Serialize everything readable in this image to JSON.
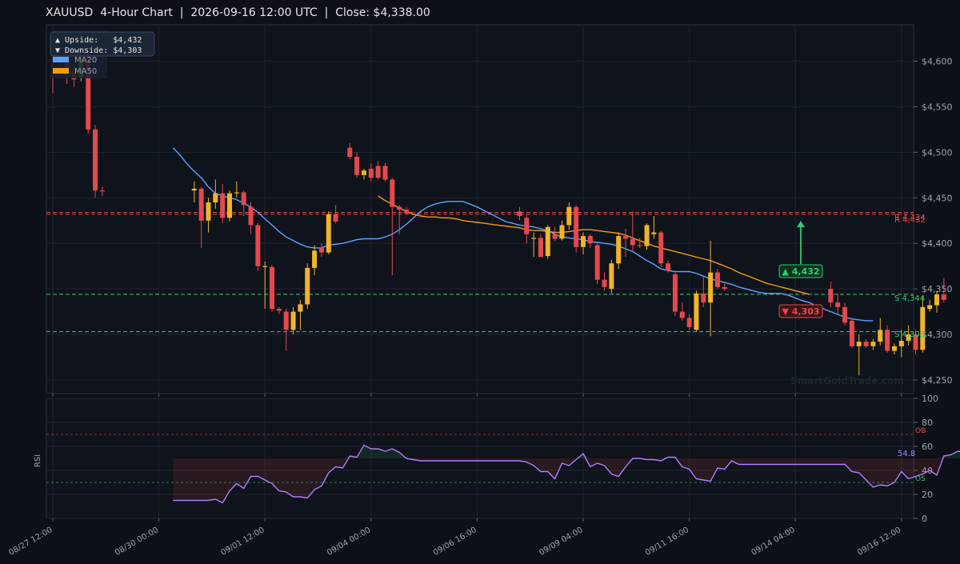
{
  "header": {
    "title": "XAUUSD  4-Hour Chart  |  2026-09-16 12:00 UTC  |  Close: $4,338.00"
  },
  "colors": {
    "background": "#0d1017",
    "panel": "#0f131b",
    "grid": "#1f2531",
    "axis_text": "#9aa3ad",
    "up_candle": "#f0b429",
    "down_candle": "#e5484d",
    "ma20": "#5da2ff",
    "ma50": "#f39c12",
    "resistance": "#e5484d",
    "support": "#2ecc71",
    "rsi_line": "#b07cff"
  },
  "legend": {
    "upside": "▲ Upside:   $4,432",
    "downside": "▼ Downside: $4,303",
    "ma20": "MA20",
    "ma50": "MA50"
  },
  "annotations": {
    "upside_target": "▲ 4,432",
    "downside_target": "▼ 4,303",
    "r_label_1": "R 4,434",
    "r_label_2": "R 4,432",
    "s_label_1": "S 4,344",
    "s_label_2": "S 4,303",
    "watermark": "SmartGoldTrade.com"
  },
  "rsi_panel": {
    "ylabel": "RSI",
    "ob_label": "OB",
    "os_label": "OS",
    "last_value_label": "54.8"
  },
  "chart_data": [
    {
      "type": "candlestick",
      "symbol": "XAUUSD",
      "timeframe": "4H",
      "ylim": [
        4235,
        4640
      ],
      "y_ticks": [
        4250,
        4300,
        4350,
        4400,
        4450,
        4500,
        4550,
        4600
      ],
      "y_tick_labels": [
        "$4,250",
        "$4,300",
        "$4,350",
        "$4,400",
        "$4,450",
        "$4,500",
        "$4,550",
        "$4,600"
      ],
      "x_ticks": [
        "08/27 12:00",
        "08/30 00:00",
        "09/01 12:00",
        "09/04 00:00",
        "09/06 16:00",
        "09/09 04:00",
        "09/11 16:00",
        "09/14 04:00",
        "09/16 12:00"
      ],
      "levels": {
        "resistance": [
          4434,
          4432
        ],
        "support": [
          4344,
          4303
        ]
      },
      "candles": [
        [
          4620,
          4632,
          4565,
          4610
        ],
        [
          4610,
          4615,
          4585,
          4600
        ],
        [
          4600,
          4605,
          4575,
          4590
        ],
        [
          4590,
          4598,
          4572,
          4580
        ],
        [
          4582,
          4612,
          4578,
          4600
        ],
        [
          4605,
          4612,
          4520,
          4525
        ],
        [
          4525,
          4530,
          4450,
          4458
        ],
        [
          4458,
          4462,
          4452,
          4457
        ],
        null,
        null,
        null,
        null,
        null,
        null,
        null,
        null,
        null,
        null,
        null,
        null,
        [
          4458,
          4468,
          4445,
          4460
        ],
        [
          4460,
          4462,
          4395,
          4425
        ],
        [
          4425,
          4450,
          4412,
          4445
        ],
        [
          4445,
          4470,
          4438,
          4455
        ],
        [
          4455,
          4465,
          4422,
          4428
        ],
        [
          4428,
          4458,
          4424,
          4455
        ],
        [
          4455,
          4468,
          4450,
          4456
        ],
        [
          4456,
          4458,
          4430,
          4442
        ],
        [
          4440,
          4445,
          4410,
          4420
        ],
        [
          4420,
          4422,
          4370,
          4375
        ],
        [
          4375,
          4380,
          4328,
          4375
        ],
        [
          4374,
          4376,
          4325,
          4328
        ],
        [
          4328,
          4330,
          4322,
          4326
        ],
        [
          4325,
          4328,
          4282,
          4305
        ],
        [
          4305,
          4330,
          4300,
          4325
        ],
        [
          4325,
          4338,
          4305,
          4333
        ],
        [
          4333,
          4378,
          4328,
          4373
        ],
        [
          4373,
          4398,
          4365,
          4392
        ],
        [
          4395,
          4400,
          4385,
          4390
        ],
        [
          4390,
          4435,
          4388,
          4432
        ],
        [
          4432,
          4442,
          4422,
          4424
        ],
        null,
        [
          4505,
          4510,
          4492,
          4495
        ],
        [
          4495,
          4500,
          4472,
          4475
        ],
        [
          4475,
          4482,
          4470,
          4480
        ],
        [
          4482,
          4488,
          4468,
          4472
        ],
        [
          4485,
          4490,
          4470,
          4472
        ],
        [
          4485,
          4488,
          4468,
          4470
        ],
        [
          4470,
          4472,
          4365,
          4440
        ],
        [
          4440,
          4442,
          4410,
          4437
        ],
        [
          4437,
          4440,
          4432,
          4433
        ],
        null,
        null,
        null,
        null,
        null,
        null,
        null,
        null,
        null,
        null,
        null,
        null,
        null,
        null,
        null,
        [
          4435,
          4440,
          4425,
          4430
        ],
        [
          4428,
          4432,
          4400,
          4410
        ],
        [
          4405,
          4412,
          4385,
          4406
        ],
        [
          4406,
          4410,
          4385,
          4385
        ],
        [
          4386,
          4420,
          4383,
          4418
        ],
        [
          4410,
          4418,
          4402,
          4405
        ],
        [
          4405,
          4425,
          4403,
          4420
        ],
        [
          4420,
          4445,
          4415,
          4440
        ],
        [
          4440,
          4442,
          4390,
          4396
        ],
        [
          4396,
          4412,
          4388,
          4408
        ],
        [
          4408,
          4410,
          4395,
          4400
        ],
        [
          4398,
          4400,
          4355,
          4360
        ],
        [
          4360,
          4368,
          4348,
          4352
        ],
        [
          4350,
          4382,
          4345,
          4378
        ],
        [
          4378,
          4412,
          4372,
          4408
        ],
        [
          4408,
          4416,
          4385,
          4405
        ],
        [
          4405,
          4435,
          4392,
          4398
        ],
        [
          4398,
          4406,
          4395,
          4397
        ],
        [
          4397,
          4422,
          4393,
          4420
        ],
        [
          4410,
          4430,
          4405,
          4412
        ],
        [
          4412,
          4414,
          4374,
          4378
        ],
        [
          4378,
          4381,
          4368,
          4370
        ],
        [
          4366,
          4368,
          4320,
          4325
        ],
        [
          4325,
          4335,
          4315,
          4318
        ],
        [
          4318,
          4322,
          4305,
          4308
        ],
        [
          4305,
          4348,
          4303,
          4345
        ],
        [
          4345,
          4365,
          4330,
          4335
        ],
        [
          4335,
          4403,
          4298,
          4368
        ],
        [
          4368,
          4372,
          4350,
          4352
        ],
        [
          4352,
          4356,
          4348,
          4350
        ],
        null,
        null,
        null,
        null,
        null,
        null,
        null,
        null,
        null,
        null,
        null,
        null,
        null,
        null,
        [
          4350,
          4358,
          4330,
          4335
        ],
        [
          4335,
          4345,
          4322,
          4330
        ],
        [
          4330,
          4335,
          4310,
          4313
        ],
        [
          4315,
          4318,
          4285,
          4287
        ],
        [
          4287,
          4300,
          4255,
          4292
        ],
        [
          4292,
          4295,
          4285,
          4287
        ],
        [
          4287,
          4295,
          4283,
          4292
        ],
        [
          4292,
          4318,
          4288,
          4305
        ],
        [
          4305,
          4310,
          4280,
          4282
        ],
        [
          4282,
          4290,
          4278,
          4287
        ],
        [
          4287,
          4305,
          4275,
          4293
        ],
        [
          4293,
          4310,
          4288,
          4300
        ],
        [
          4300,
          4305,
          4278,
          4283
        ],
        [
          4283,
          4342,
          4280,
          4330
        ],
        [
          4328,
          4338,
          4325,
          4332
        ],
        [
          4332,
          4348,
          4324,
          4344
        ],
        [
          4344,
          4362,
          4335,
          4338
        ]
      ],
      "ma20": [
        [
          17,
          4505
        ],
        [
          18,
          4497
        ],
        [
          19,
          4487
        ],
        [
          20,
          4479
        ],
        [
          21,
          4472
        ],
        [
          22,
          4462
        ],
        [
          23,
          4455
        ],
        [
          24,
          4452
        ],
        [
          25,
          4450
        ],
        [
          26,
          4448
        ],
        [
          27,
          4444
        ],
        [
          28,
          4440
        ],
        [
          29,
          4434
        ],
        [
          30,
          4427
        ],
        [
          31,
          4420
        ],
        [
          32,
          4413
        ],
        [
          33,
          4407
        ],
        [
          34,
          4403
        ],
        [
          35,
          4399
        ],
        [
          36,
          4396
        ],
        [
          37,
          4395
        ],
        [
          38,
          4395
        ],
        [
          39,
          4398
        ],
        [
          40,
          4399
        ],
        [
          41,
          4400
        ],
        [
          42,
          4402
        ],
        [
          43,
          4404
        ],
        [
          44,
          4405
        ],
        [
          45,
          4405
        ],
        [
          46,
          4405
        ],
        [
          47,
          4407
        ],
        [
          48,
          4410
        ],
        [
          49,
          4415
        ],
        [
          50,
          4421
        ],
        [
          51,
          4428
        ],
        [
          52,
          4435
        ],
        [
          53,
          4440
        ],
        [
          54,
          4443
        ],
        [
          55,
          4445
        ],
        [
          56,
          4446
        ],
        [
          57,
          4446
        ],
        [
          58,
          4446
        ],
        [
          59,
          4443
        ],
        [
          60,
          4440
        ],
        [
          61,
          4436
        ],
        [
          62,
          4432
        ],
        [
          63,
          4428
        ],
        [
          64,
          4424
        ],
        [
          65,
          4422
        ],
        [
          66,
          4420
        ],
        [
          67,
          4419
        ],
        [
          68,
          4418
        ],
        [
          69,
          4416
        ],
        [
          70,
          4414
        ],
        [
          71,
          4410
        ],
        [
          72,
          4407
        ],
        [
          73,
          4406
        ],
        [
          74,
          4405
        ],
        [
          75,
          4404
        ],
        [
          76,
          4402
        ],
        [
          77,
          4401
        ],
        [
          78,
          4400
        ],
        [
          79,
          4399
        ],
        [
          80,
          4397
        ],
        [
          81,
          4394
        ],
        [
          82,
          4391
        ],
        [
          83,
          4386
        ],
        [
          84,
          4381
        ],
        [
          85,
          4377
        ],
        [
          86,
          4372
        ],
        [
          87,
          4370
        ],
        [
          88,
          4369
        ],
        [
          89,
          4369
        ],
        [
          90,
          4369
        ],
        [
          91,
          4367
        ],
        [
          92,
          4364
        ],
        [
          93,
          4361
        ],
        [
          94,
          4359
        ],
        [
          95,
          4357
        ],
        [
          96,
          4355
        ],
        [
          97,
          4352
        ],
        [
          98,
          4350
        ],
        [
          99,
          4348
        ],
        [
          100,
          4346
        ],
        [
          101,
          4345
        ],
        [
          102,
          4345
        ],
        [
          103,
          4345
        ],
        [
          104,
          4343
        ],
        [
          105,
          4340
        ],
        [
          106,
          4337
        ],
        [
          107,
          4335
        ],
        [
          108,
          4331
        ],
        [
          109,
          4328
        ],
        [
          110,
          4325
        ],
        [
          111,
          4322
        ],
        [
          112,
          4319
        ],
        [
          113,
          4317
        ],
        [
          114,
          4316
        ],
        [
          115,
          4315
        ],
        [
          116,
          4315
        ]
      ],
      "ma50": [
        [
          46,
          4452
        ],
        [
          47,
          4447
        ],
        [
          48,
          4443
        ],
        [
          49,
          4439
        ],
        [
          50,
          4435
        ],
        [
          51,
          4432
        ],
        [
          52,
          4430
        ],
        [
          53,
          4429
        ],
        [
          54,
          4429
        ],
        [
          55,
          4428
        ],
        [
          56,
          4428
        ],
        [
          57,
          4427
        ],
        [
          58,
          4425
        ],
        [
          59,
          4424
        ],
        [
          60,
          4423
        ],
        [
          61,
          4422
        ],
        [
          62,
          4421
        ],
        [
          63,
          4420
        ],
        [
          64,
          4419
        ],
        [
          65,
          4418
        ],
        [
          66,
          4417
        ],
        [
          67,
          4415
        ],
        [
          68,
          4414
        ],
        [
          69,
          4414
        ],
        [
          70,
          4413
        ],
        [
          71,
          4412
        ],
        [
          72,
          4412
        ],
        [
          73,
          4413
        ],
        [
          74,
          4414
        ],
        [
          75,
          4415
        ],
        [
          76,
          4415
        ],
        [
          77,
          4414
        ],
        [
          78,
          4413
        ],
        [
          79,
          4412
        ],
        [
          80,
          4411
        ],
        [
          81,
          4409
        ],
        [
          82,
          4406
        ],
        [
          83,
          4403
        ],
        [
          84,
          4400
        ],
        [
          85,
          4397
        ],
        [
          86,
          4395
        ],
        [
          87,
          4393
        ],
        [
          88,
          4391
        ],
        [
          89,
          4389
        ],
        [
          90,
          4387
        ],
        [
          91,
          4385
        ],
        [
          92,
          4383
        ],
        [
          93,
          4381
        ],
        [
          94,
          4378
        ],
        [
          95,
          4375
        ],
        [
          96,
          4372
        ],
        [
          97,
          4368
        ],
        [
          98,
          4365
        ],
        [
          99,
          4362
        ],
        [
          100,
          4359
        ],
        [
          101,
          4356
        ],
        [
          102,
          4354
        ],
        [
          103,
          4352
        ],
        [
          104,
          4350
        ],
        [
          105,
          4348
        ],
        [
          106,
          4346
        ],
        [
          107,
          4344
        ]
      ]
    },
    {
      "type": "line",
      "title": "RSI",
      "ylim": [
        0,
        100
      ],
      "y_ticks": [
        0,
        20,
        40,
        60,
        80,
        100
      ],
      "overbought": 70,
      "oversold": 30,
      "values": [
        null,
        null,
        null,
        null,
        null,
        null,
        null,
        null,
        null,
        null,
        null,
        null,
        null,
        null,
        null,
        null,
        null,
        15,
        15,
        15,
        15,
        15,
        15,
        16,
        13,
        23,
        29,
        25,
        35,
        35,
        32,
        29,
        23,
        22,
        18,
        18,
        17,
        24,
        27,
        38,
        43,
        42,
        52,
        51,
        61,
        58,
        58,
        56,
        58,
        55,
        50,
        49,
        48,
        48,
        48,
        48,
        48,
        48,
        48,
        48,
        48,
        48,
        48,
        48,
        48,
        48,
        48,
        47,
        44,
        39,
        39,
        33,
        46,
        44,
        49,
        54,
        43,
        46,
        44,
        37,
        35,
        43,
        50,
        50,
        49,
        49,
        48,
        51,
        51,
        43,
        41,
        33,
        32,
        31,
        42,
        41,
        48,
        45,
        45,
        45,
        45,
        45,
        45,
        45,
        45,
        45,
        45,
        45,
        45,
        45,
        45,
        45,
        45,
        39,
        38,
        32,
        26,
        28,
        27,
        30,
        39,
        33,
        35,
        37,
        40,
        36,
        52,
        53,
        56,
        55
      ],
      "last_value": 54.8
    }
  ]
}
